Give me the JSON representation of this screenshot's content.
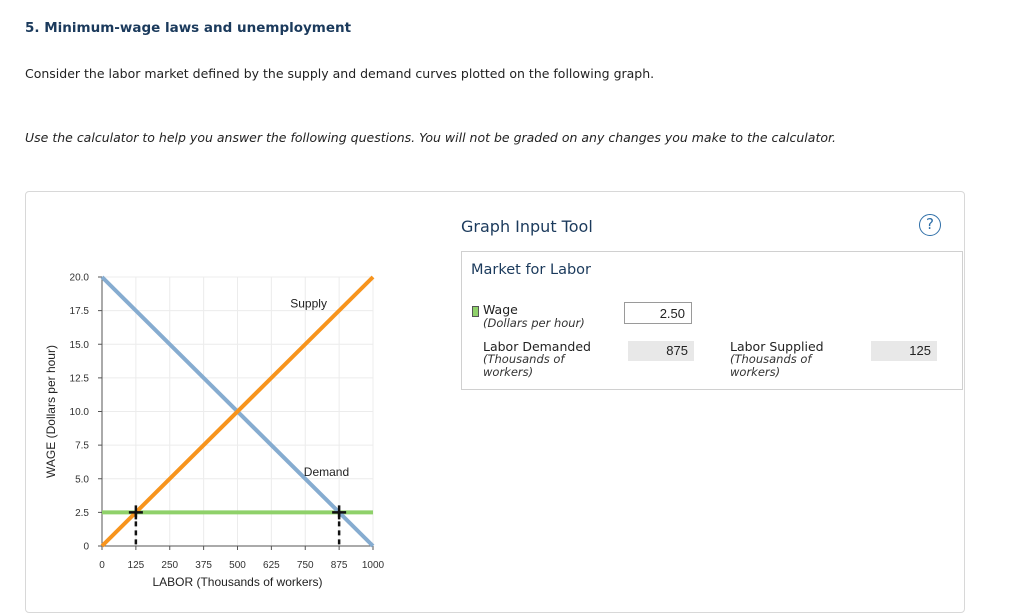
{
  "question": {
    "title": "5. Minimum-wage laws and unemployment",
    "intro": "Consider the labor market defined by the supply and demand curves plotted on the following graph.",
    "instructions": "Use the calculator to help you answer the following questions. You will not be graded on any changes you make to the calculator."
  },
  "tool": {
    "title": "Graph Input Tool",
    "help_glyph": "?",
    "market_title": "Market for Labor",
    "wage_label": "Wage",
    "wage_unit": "(Dollars per hour)",
    "wage_value": "2.50",
    "demanded_label": "Labor Demanded",
    "demanded_unit_1": "(Thousands of",
    "demanded_unit_2": "workers)",
    "demanded_value": "875",
    "supplied_label": "Labor Supplied",
    "supplied_unit_1": "(Thousands of",
    "supplied_unit_2": "workers)",
    "supplied_value": "125"
  },
  "chart_data": {
    "type": "line",
    "xlabel": "LABOR (Thousands of workers)",
    "ylabel": "WAGE (Dollars per hour)",
    "xlim": [
      0,
      1000
    ],
    "ylim": [
      0,
      20
    ],
    "xticks": [
      0,
      125,
      250,
      375,
      500,
      625,
      750,
      875,
      1000
    ],
    "yticks": [
      0,
      2.5,
      5.0,
      7.5,
      10.0,
      12.5,
      15.0,
      17.5,
      20.0
    ],
    "ytick_labels": [
      "0",
      "2.5",
      "5.0",
      "7.5",
      "10.0",
      "12.5",
      "15.0",
      "17.5",
      "20.0"
    ],
    "series": [
      {
        "name": "Supply",
        "color": "#f7941d",
        "x": [
          0,
          1000
        ],
        "y": [
          0,
          20
        ],
        "label_at": [
          750,
          17.5
        ]
      },
      {
        "name": "Demand",
        "color": "#86acd0",
        "x": [
          0,
          1000
        ],
        "y": [
          20,
          0
        ],
        "label_at": [
          800,
          5.0
        ]
      }
    ],
    "wage_line": {
      "y": 2.5,
      "color": "#8fd16a"
    },
    "markers": [
      {
        "x": 125,
        "y": 2.5
      },
      {
        "x": 875,
        "y": 2.5
      }
    ],
    "grid": true
  }
}
